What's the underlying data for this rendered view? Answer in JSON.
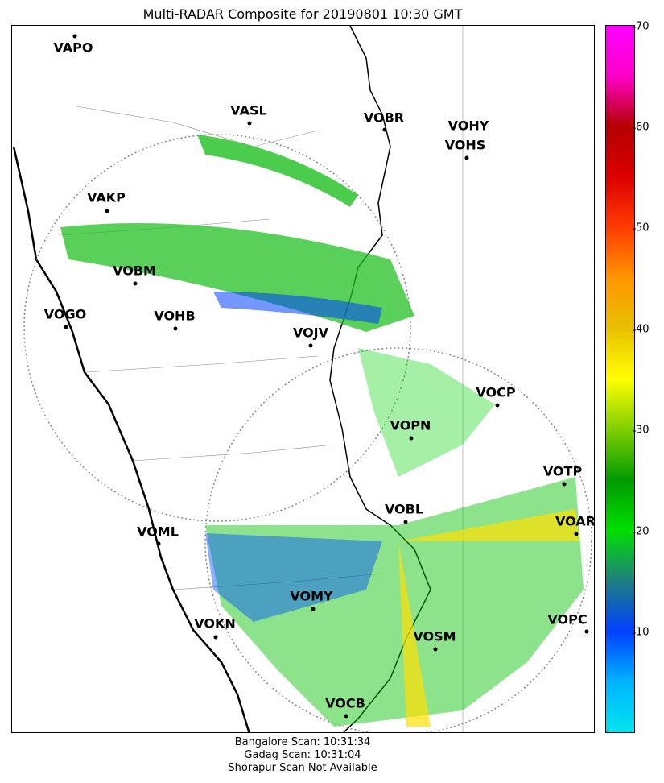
{
  "title": "Multi-RADAR Composite for 20190801 10:30 GMT",
  "stations": [
    {
      "id": "VAPO",
      "label": "VAPO"
    },
    {
      "id": "VASL",
      "label": "VASL"
    },
    {
      "id": "VOBR",
      "label": "VOBR"
    },
    {
      "id": "VOHY",
      "label": "VOHY"
    },
    {
      "id": "VOHS",
      "label": "VOHS"
    },
    {
      "id": "VAKP",
      "label": "VAKP"
    },
    {
      "id": "VOBM",
      "label": "VOBM"
    },
    {
      "id": "VOGO",
      "label": "VOGO"
    },
    {
      "id": "VOHB",
      "label": "VOHB"
    },
    {
      "id": "VOJV",
      "label": "VOJV"
    },
    {
      "id": "VOCP",
      "label": "VOCP"
    },
    {
      "id": "VOPN",
      "label": "VOPN"
    },
    {
      "id": "VOTP",
      "label": "VOTP"
    },
    {
      "id": "VOBL",
      "label": "VOBL"
    },
    {
      "id": "VOAR",
      "label": "VOAR"
    },
    {
      "id": "VOML",
      "label": "VOML"
    },
    {
      "id": "VOMY",
      "label": "VOMY"
    },
    {
      "id": "VOKN",
      "label": "VOKN"
    },
    {
      "id": "VOPC",
      "label": "VOPC"
    },
    {
      "id": "VOSM",
      "label": "VOSM"
    },
    {
      "id": "VOCB",
      "label": "VOCB"
    }
  ],
  "colorbar": {
    "min": 0,
    "max": 70,
    "ticks": [
      "10",
      "20",
      "30",
      "40",
      "50",
      "60",
      "70"
    ],
    "colors": [
      "#00e5ee",
      "#00b4ff",
      "#0040ff",
      "#1f7f7f",
      "#00e000",
      "#009a00",
      "#7fcf00",
      "#ffff00",
      "#e8c000",
      "#ff9600",
      "#ff3c00",
      "#dd0000",
      "#b40000",
      "#ff00c8",
      "#ff00ff"
    ]
  },
  "footer": {
    "line1": "Bangalore Scan: 10:31:34",
    "line2": "Gadag Scan: 10:31:04",
    "line3": "Shorapur Scan Not Available"
  }
}
